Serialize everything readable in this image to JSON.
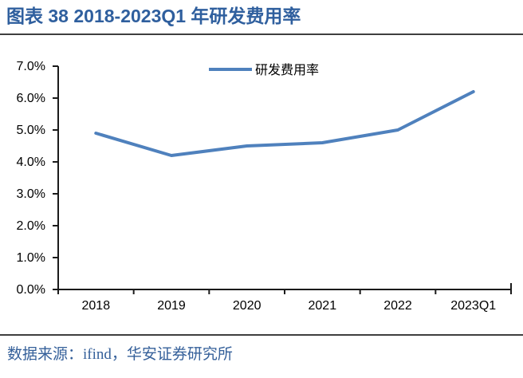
{
  "page": {
    "title": "图表 38 2018-2023Q1 年研发费用率",
    "source_note": "数据来源：ifind，华安证券研究所"
  },
  "colors": {
    "title_text": "#2F5F9E",
    "series_line": "#4F81BD",
    "axis": "#1A1A1A",
    "tick_label": "#000000",
    "separator": "#3F3F3F",
    "source_text": "#35609A"
  },
  "chart_data": {
    "type": "line",
    "title": "图表 38 2018-2023Q1 年研发费用率",
    "categories": [
      "2018",
      "2019",
      "2020",
      "2021",
      "2022",
      "2023Q1"
    ],
    "series": [
      {
        "name": "研发费用率",
        "values": [
          4.9,
          4.2,
          4.5,
          4.6,
          5.0,
          6.2
        ]
      }
    ],
    "xlabel": "",
    "ylabel": "",
    "unit": "%",
    "ylim": [
      0,
      7
    ],
    "ytick_step": 1,
    "ytick_labels": [
      "0.0%",
      "1.0%",
      "2.0%",
      "3.0%",
      "4.0%",
      "5.0%",
      "6.0%",
      "7.0%"
    ],
    "grid": false,
    "legend_position": "top-center",
    "legend": [
      "研发费用率"
    ]
  }
}
